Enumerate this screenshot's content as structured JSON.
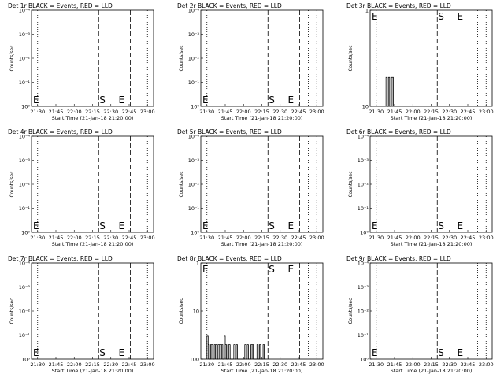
{
  "chart_data": [
    {
      "title": "Det 1r BLACK = Events, RED = LLD",
      "ylabel": "Counts/sec",
      "xlabel": "Start Time (21-Jan-18 21:20:00)",
      "yscale": "log",
      "ytick_labels": [
        "10⁰",
        "10⁻¹",
        "10⁻²",
        "10⁻³",
        "10⁻⁴"
      ],
      "xtick_labels": [
        "21:30",
        "21:45",
        "22:00",
        "22:15",
        "22:30",
        "22:45",
        "23:00"
      ],
      "markers": [
        "E",
        "S",
        "E"
      ],
      "series": []
    },
    {
      "title": "Det 2r BLACK = Events, RED = LLD",
      "ylabel": "Counts/sec",
      "xlabel": "Start Time (21-Jan-18 21:20:00)",
      "yscale": "log",
      "ytick_labels": [
        "10⁰",
        "10⁻¹",
        "10⁻²",
        "10⁻³",
        "10⁻⁴"
      ],
      "xtick_labels": [
        "21:30",
        "21:45",
        "22:00",
        "22:15",
        "22:30",
        "22:45",
        "23:00"
      ],
      "markers": [
        "E",
        "S",
        "E"
      ],
      "series": []
    },
    {
      "title": "Det 3r BLACK = Events, RED = LLD",
      "ylabel": "Counts/sec",
      "xlabel": "Start Time (21-Jan-18 21:20:00)",
      "yscale": "log",
      "ytick_labels": [
        "10",
        "1"
      ],
      "xtick_labels": [
        "21:30",
        "21:45",
        "22:00",
        "22:15",
        "22:30",
        "22:45",
        "23:00"
      ],
      "markers": [
        "E",
        "S",
        "E"
      ],
      "series": [
        {
          "color": "#000000",
          "x": [
            "21:38",
            "21:39",
            "21:40",
            "21:41",
            "21:42",
            "21:43"
          ],
          "values": [
            2,
            1,
            2,
            1,
            2,
            2
          ]
        }
      ]
    },
    {
      "title": "Det 4r BLACK = Events, RED = LLD",
      "ylabel": "Counts/sec",
      "xlabel": "Start Time (21-Jan-18 21:20:00)",
      "yscale": "log",
      "ytick_labels": [
        "10⁰",
        "10⁻¹",
        "10⁻²",
        "10⁻³",
        "10⁻⁴"
      ],
      "xtick_labels": [
        "21:30",
        "21:45",
        "22:00",
        "22:15",
        "22:30",
        "22:45",
        "23:00"
      ],
      "markers": [
        "E",
        "S",
        "E"
      ],
      "series": []
    },
    {
      "title": "Det 5r BLACK = Events, RED = LLD",
      "ylabel": "Counts/sec",
      "xlabel": "Start Time (21-Jan-18 21:20:00)",
      "yscale": "log",
      "ytick_labels": [
        "10⁰",
        "10⁻¹",
        "10⁻²",
        "10⁻³",
        "10⁻⁴"
      ],
      "xtick_labels": [
        "21:30",
        "21:45",
        "22:00",
        "22:15",
        "22:30",
        "22:45",
        "23:00"
      ],
      "markers": [
        "E",
        "S",
        "E"
      ],
      "series": []
    },
    {
      "title": "Det 6r BLACK = Events, RED = LLD",
      "ylabel": "Counts/sec",
      "xlabel": "Start Time (21-Jan-18 21:20:00)",
      "yscale": "log",
      "ytick_labels": [
        "10⁰",
        "10⁻¹",
        "10⁻²",
        "10⁻³",
        "10⁻⁴"
      ],
      "xtick_labels": [
        "21:30",
        "21:45",
        "22:00",
        "22:15",
        "22:30",
        "22:45",
        "23:00"
      ],
      "markers": [
        "E",
        "S",
        "E"
      ],
      "series": []
    },
    {
      "title": "Det 7r BLACK = Events, RED = LLD",
      "ylabel": "Counts/sec",
      "xlabel": "Start Time (21-Jan-18 21:20:00)",
      "yscale": "log",
      "ytick_labels": [
        "10⁰",
        "10⁻¹",
        "10⁻²",
        "10⁻³",
        "10⁻⁴"
      ],
      "xtick_labels": [
        "21:30",
        "21:45",
        "22:00",
        "22:15",
        "22:30",
        "22:45",
        "23:00"
      ],
      "markers": [
        "E",
        "S",
        "E"
      ],
      "series": []
    },
    {
      "title": "Det 8r BLACK = Events, RED = LLD",
      "ylabel": "Counts/sec",
      "xlabel": "Start Time (21-Jan-18 21:20:00)",
      "yscale": "log",
      "ytick_labels": [
        "100",
        "10",
        "1"
      ],
      "xtick_labels": [
        "21:30",
        "21:45",
        "22:00",
        "22:15",
        "22:30",
        "22:45",
        "23:00"
      ],
      "markers": [
        "E",
        "S",
        "E"
      ],
      "series": [
        {
          "color": "#000000",
          "x": [
            "21:30",
            "21:31",
            "21:32",
            "21:33",
            "21:34",
            "21:35",
            "21:36",
            "21:37",
            "21:38",
            "21:39",
            "21:40",
            "21:41",
            "21:42",
            "21:43",
            "21:44",
            "21:45",
            "21:46",
            "21:47",
            "21:48",
            "21:49",
            "21:50",
            "21:51",
            "21:52",
            "21:53",
            "21:54",
            "21:55",
            "21:56",
            "21:57",
            "21:58",
            "21:59",
            "22:00",
            "22:01",
            "22:02",
            "22:03",
            "22:04",
            "22:05",
            "22:06",
            "22:07",
            "22:08",
            "22:09",
            "22:10",
            "22:11",
            "22:12",
            "22:13",
            "22:14",
            "22:15",
            "22:16",
            "22:17"
          ],
          "values": [
            3,
            2,
            1,
            2,
            2,
            1,
            2,
            2,
            1,
            2,
            2,
            2,
            2,
            1,
            3,
            2,
            1,
            2,
            2,
            1,
            1,
            1,
            2,
            1,
            2,
            1,
            1,
            1,
            1,
            1,
            1,
            2,
            1,
            2,
            1,
            1,
            2,
            2,
            1,
            1,
            1,
            2,
            1,
            2,
            1,
            1,
            2,
            1
          ]
        }
      ]
    },
    {
      "title": "Det 9r BLACK = Events, RED = LLD",
      "ylabel": "Counts/sec",
      "xlabel": "Start Time (21-Jan-18 21:20:00)",
      "yscale": "log",
      "ytick_labels": [
        "10⁰",
        "10⁻¹",
        "10⁻²",
        "10⁻³",
        "10⁻⁴"
      ],
      "xtick_labels": [
        "21:30",
        "21:45",
        "22:00",
        "22:15",
        "22:30",
        "22:45",
        "23:00"
      ],
      "markers": [
        "E",
        "S",
        "E"
      ],
      "series": []
    }
  ]
}
